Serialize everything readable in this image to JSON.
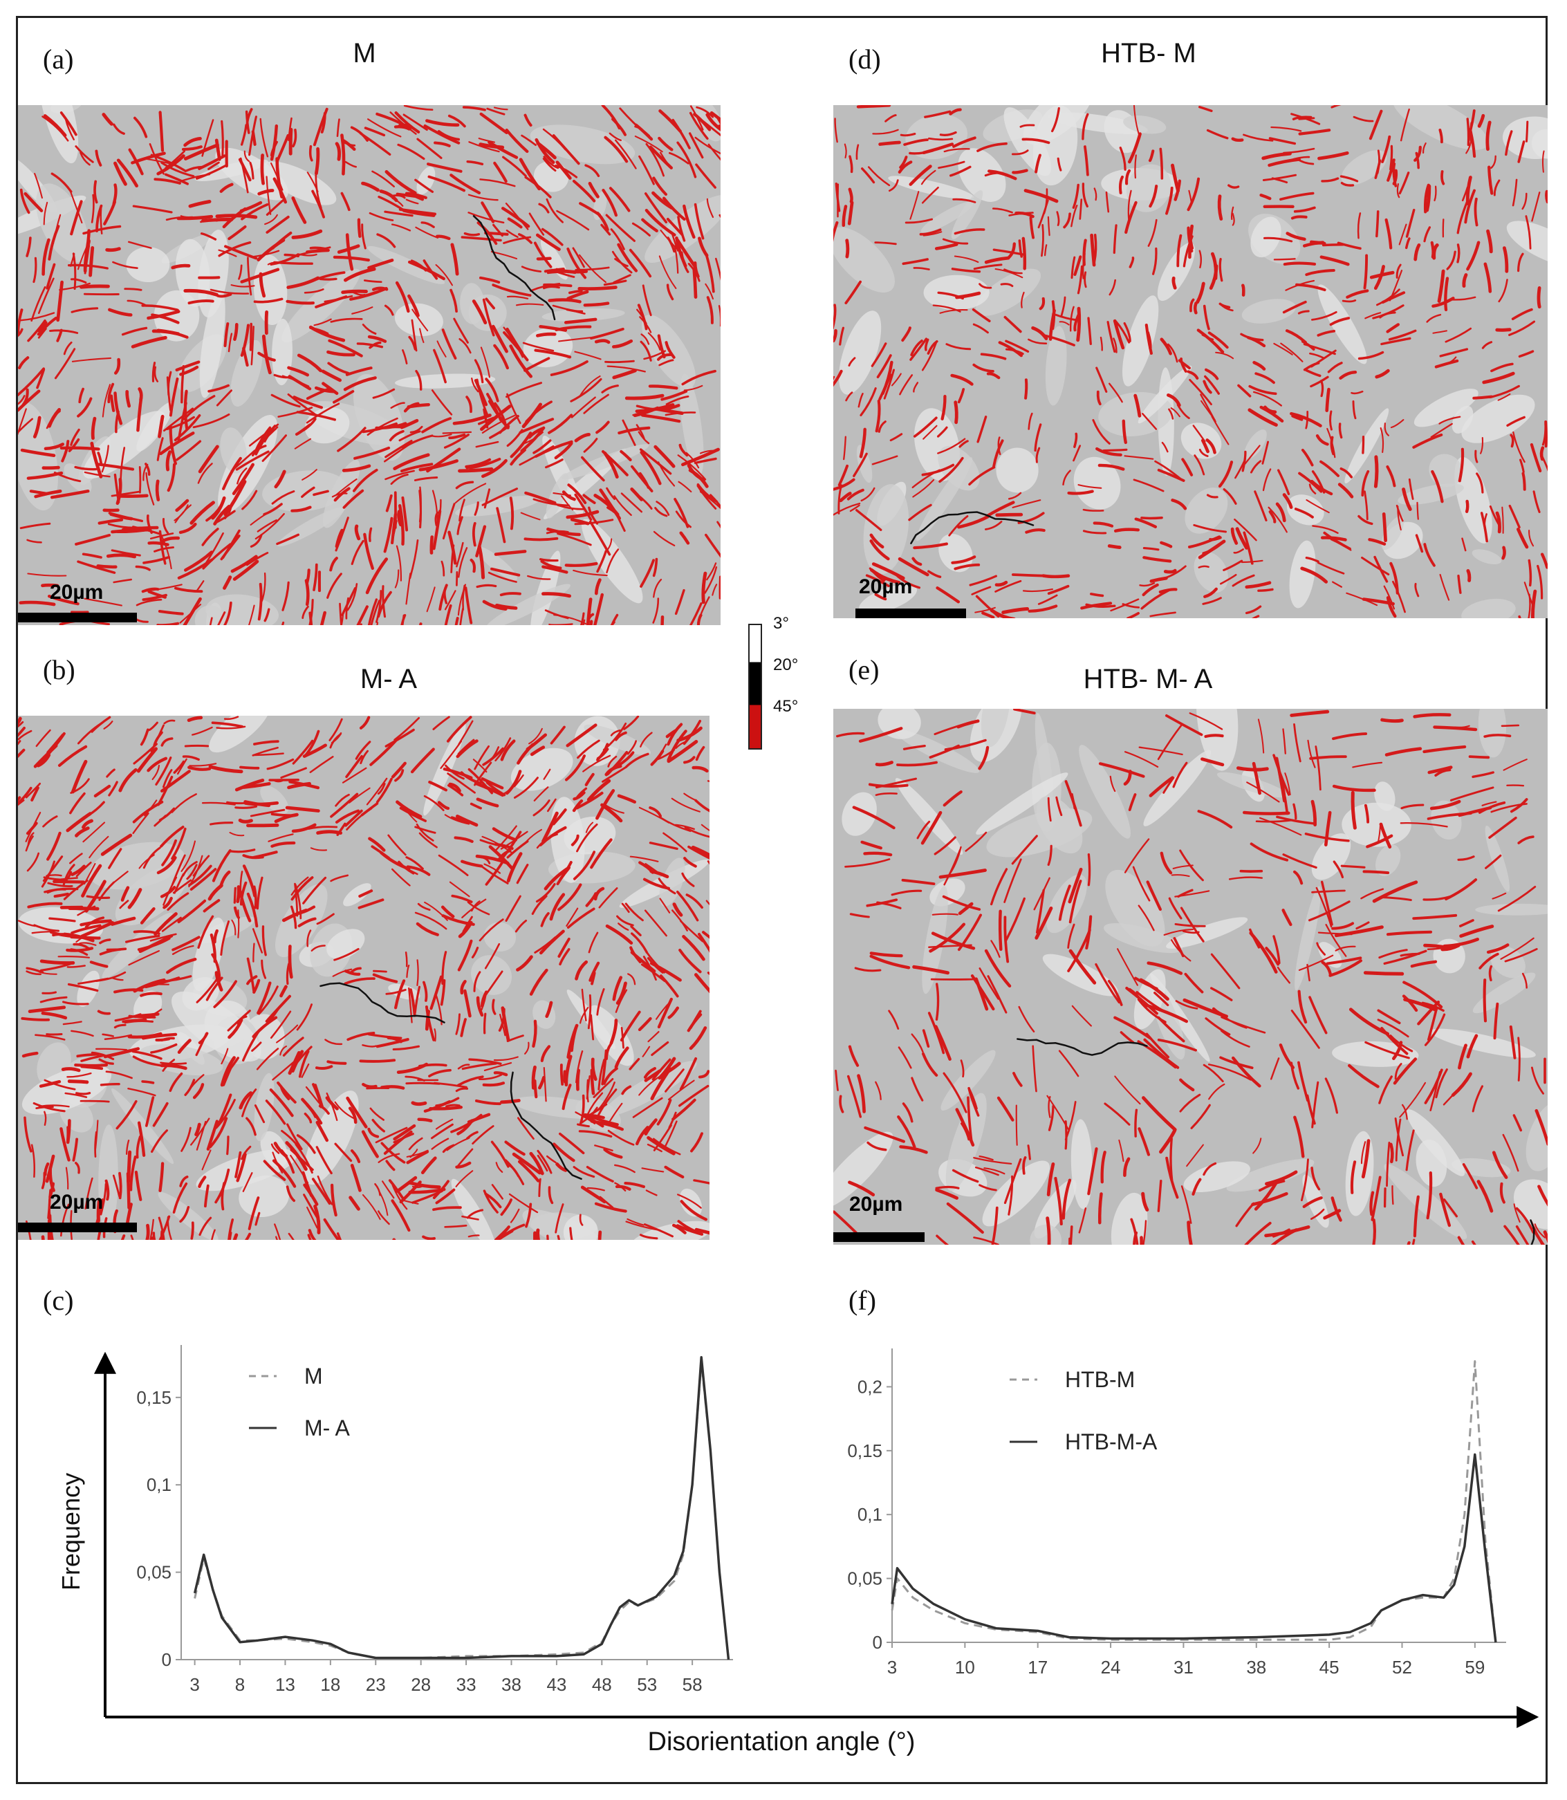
{
  "panels": {
    "a": {
      "label": "(a)",
      "title": "M",
      "scale": "20µm"
    },
    "b": {
      "label": "(b)",
      "title": "M- A",
      "scale": "20µm"
    },
    "c": {
      "label": "(c)"
    },
    "d": {
      "label": "(d)",
      "title": "HTB- M",
      "scale": "20µm"
    },
    "e": {
      "label": "(e)",
      "title": "HTB- M- A",
      "scale": "20µm"
    },
    "f": {
      "label": "(f)"
    }
  },
  "angle_legend": {
    "labels": [
      "3°",
      "20°",
      "45°"
    ],
    "colors": [
      "#ffffff",
      "#000000",
      "#cc1111"
    ]
  },
  "axis": {
    "ylabel": "Frequency",
    "xlabel": "Disorientation angle (°)"
  },
  "colors": {
    "boundary_red": "#d41a1a",
    "boundary_black": "#111111",
    "grain_gray": "#bdbdbd"
  },
  "chart_data": [
    {
      "type": "line",
      "panel": "c",
      "xlim": [
        1.5,
        62.5
      ],
      "ylim": [
        0,
        0.18
      ],
      "xticks": [
        "3",
        "8",
        "13",
        "18",
        "23",
        "28",
        "33",
        "38",
        "43",
        "48",
        "53",
        "58"
      ],
      "xtick_values": [
        3,
        8,
        13,
        18,
        23,
        28,
        33,
        38,
        43,
        48,
        53,
        58
      ],
      "yticks": [
        "0",
        "0,05",
        "0,1",
        "0,15"
      ],
      "ytick_values": [
        0,
        0.05,
        0.1,
        0.15
      ],
      "series": [
        {
          "name": "M",
          "style": "dashed",
          "x": [
            3,
            4,
            5,
            6,
            8,
            10,
            13,
            16,
            18,
            20,
            23,
            28,
            33,
            38,
            43,
            46,
            48,
            49,
            50,
            51,
            52,
            54,
            56,
            57,
            58,
            59,
            60,
            61,
            62
          ],
          "y": [
            0.035,
            0.058,
            0.04,
            0.025,
            0.011,
            0.011,
            0.012,
            0.01,
            0.008,
            0.004,
            0.001,
            0.001,
            0.002,
            0.002,
            0.003,
            0.004,
            0.01,
            0.02,
            0.028,
            0.033,
            0.031,
            0.035,
            0.045,
            0.06,
            0.1,
            0.17,
            0.12,
            0.05,
            0.0
          ]
        },
        {
          "name": "M- A",
          "style": "solid",
          "x": [
            3,
            4,
            5,
            6,
            8,
            10,
            13,
            16,
            18,
            20,
            23,
            28,
            33,
            38,
            43,
            46,
            48,
            49,
            50,
            51,
            52,
            54,
            56,
            57,
            58,
            59,
            60,
            61,
            62
          ],
          "y": [
            0.038,
            0.06,
            0.04,
            0.024,
            0.01,
            0.011,
            0.013,
            0.011,
            0.009,
            0.004,
            0.001,
            0.001,
            0.001,
            0.002,
            0.002,
            0.003,
            0.009,
            0.02,
            0.03,
            0.034,
            0.031,
            0.036,
            0.048,
            0.062,
            0.1,
            0.173,
            0.12,
            0.05,
            0.0
          ]
        }
      ]
    },
    {
      "type": "line",
      "panel": "f",
      "xlim": [
        3,
        62
      ],
      "ylim": [
        0,
        0.23
      ],
      "xticks": [
        "3",
        "10",
        "17",
        "24",
        "31",
        "38",
        "45",
        "52",
        "59"
      ],
      "xtick_values": [
        3,
        10,
        17,
        24,
        31,
        38,
        45,
        52,
        59
      ],
      "yticks": [
        "0",
        "0,05",
        "0,1",
        "0,15",
        "0,2"
      ],
      "ytick_values": [
        0,
        0.05,
        0.1,
        0.15,
        0.2
      ],
      "series": [
        {
          "name": "HTB-M",
          "style": "dashed",
          "x": [
            3,
            3.5,
            5,
            7,
            10,
            13,
            17,
            20,
            24,
            31,
            38,
            45,
            47,
            49,
            50,
            52,
            54,
            56,
            57,
            58,
            59,
            60,
            61
          ],
          "y": [
            0.025,
            0.05,
            0.035,
            0.025,
            0.015,
            0.01,
            0.008,
            0.003,
            0.002,
            0.002,
            0.002,
            0.002,
            0.004,
            0.012,
            0.025,
            0.033,
            0.035,
            0.035,
            0.05,
            0.1,
            0.22,
            0.08,
            0.0
          ]
        },
        {
          "name": "HTB-M-A",
          "style": "solid",
          "x": [
            3,
            3.5,
            5,
            7,
            10,
            13,
            17,
            20,
            24,
            31,
            38,
            45,
            47,
            49,
            50,
            52,
            54,
            56,
            57,
            58,
            59,
            60,
            61
          ],
          "y": [
            0.03,
            0.058,
            0.042,
            0.03,
            0.018,
            0.011,
            0.009,
            0.004,
            0.003,
            0.003,
            0.004,
            0.006,
            0.008,
            0.015,
            0.025,
            0.033,
            0.037,
            0.035,
            0.045,
            0.075,
            0.147,
            0.07,
            0.0
          ]
        }
      ]
    }
  ]
}
